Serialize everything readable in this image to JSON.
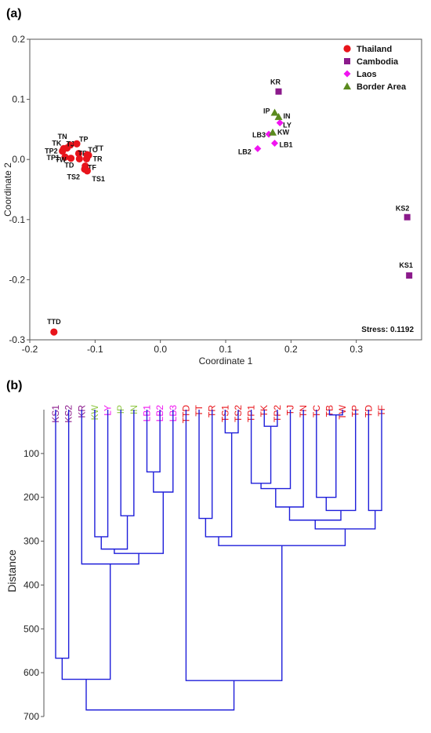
{
  "panel_a_label": "(a)",
  "panel_b_label": "(b)",
  "chart_data": [
    {
      "type": "scatter",
      "xlabel": "Coordinate 1",
      "ylabel": "Coordinate 2",
      "xlim": [
        -0.2,
        0.4
      ],
      "ylim": [
        -0.3,
        0.2
      ],
      "xticks": [
        -0.2,
        -0.1,
        0.0,
        0.1,
        0.2,
        0.3
      ],
      "xtick_labels": [
        "-0.2",
        "-0.1",
        "0.0",
        "0.1",
        "0.2",
        "0.3"
      ],
      "yticks": [
        -0.3,
        -0.2,
        -0.1,
        0.0,
        0.1,
        0.2
      ],
      "ytick_labels": [
        "-0.3",
        "-0.2",
        "-0.1",
        "0.0",
        "0.1",
        "0.2"
      ],
      "annotation": "Stress: 0.1192",
      "legend_position": "top-right",
      "series": [
        {
          "name": "Thailand",
          "marker": "circle",
          "color": "#e8141b",
          "points": [
            {
              "label": "TN",
              "x": -0.138,
              "y": 0.024
            },
            {
              "label": "TK",
              "x": -0.148,
              "y": 0.018
            },
            {
              "label": "TJ",
              "x": -0.143,
              "y": 0.019
            },
            {
              "label": "TP",
              "x": -0.128,
              "y": 0.026
            },
            {
              "label": "TP2",
              "x": -0.15,
              "y": 0.014
            },
            {
              "label": "TB",
              "x": -0.125,
              "y": 0.01
            },
            {
              "label": "TC",
              "x": -0.112,
              "y": 0.008
            },
            {
              "label": "TT",
              "x": -0.11,
              "y": 0.007
            },
            {
              "label": "TP1",
              "x": -0.146,
              "y": 0.004
            },
            {
              "label": "TW",
              "x": -0.137,
              "y": 0.002
            },
            {
              "label": "TR",
              "x": -0.113,
              "y": 0.001
            },
            {
              "label": "TD",
              "x": -0.124,
              "y": 0.001
            },
            {
              "label": "TF",
              "x": -0.115,
              "y": -0.011
            },
            {
              "label": "TS2",
              "x": -0.116,
              "y": -0.016
            },
            {
              "label": "TS1",
              "x": -0.112,
              "y": -0.019
            },
            {
              "label": "TTD",
              "x": -0.163,
              "y": -0.287
            }
          ]
        },
        {
          "name": "Cambodia",
          "marker": "square",
          "color": "#8b1a8b",
          "points": [
            {
              "label": "KR",
              "x": 0.181,
              "y": 0.113
            },
            {
              "label": "KS2",
              "x": 0.378,
              "y": -0.096
            },
            {
              "label": "KS1",
              "x": 0.381,
              "y": -0.193
            }
          ]
        },
        {
          "name": "Laos",
          "marker": "diamond",
          "color": "#f014f0",
          "points": [
            {
              "label": "LY",
              "x": 0.183,
              "y": 0.061
            },
            {
              "label": "LB3",
              "x": 0.166,
              "y": 0.042
            },
            {
              "label": "LB1",
              "x": 0.175,
              "y": 0.027
            },
            {
              "label": "LB2",
              "x": 0.149,
              "y": 0.018
            }
          ]
        },
        {
          "name": "Border Area",
          "marker": "triangle",
          "color": "#5a8a1e",
          "points": [
            {
              "label": "IP",
              "x": 0.175,
              "y": 0.078
            },
            {
              "label": "IN",
              "x": 0.181,
              "y": 0.071
            },
            {
              "label": "KW",
              "x": 0.172,
              "y": 0.045
            }
          ]
        }
      ]
    },
    {
      "type": "dendrogram",
      "ylabel": "Distance",
      "ylim": [
        0,
        700
      ],
      "yticks": [
        100,
        200,
        300,
        400,
        500,
        600,
        700
      ],
      "leaves": [
        {
          "label": "KS1",
          "color": "#8b1a8b"
        },
        {
          "label": "KS2",
          "color": "#8b1a8b"
        },
        {
          "label": "KR",
          "color": "#8b1a8b"
        },
        {
          "label": "KW",
          "color": "#8dc63f"
        },
        {
          "label": "LY",
          "color": "#f014f0"
        },
        {
          "label": "IP",
          "color": "#8dc63f"
        },
        {
          "label": "IN",
          "color": "#8dc63f"
        },
        {
          "label": "LB1",
          "color": "#f014f0"
        },
        {
          "label": "LB2",
          "color": "#f014f0"
        },
        {
          "label": "LB3",
          "color": "#f014f0"
        },
        {
          "label": "TTD",
          "color": "#e8141b"
        },
        {
          "label": "TT",
          "color": "#e8141b"
        },
        {
          "label": "TR",
          "color": "#e8141b"
        },
        {
          "label": "TS1",
          "color": "#e8141b"
        },
        {
          "label": "TS2",
          "color": "#e8141b"
        },
        {
          "label": "TP1",
          "color": "#e8141b"
        },
        {
          "label": "TK",
          "color": "#e8141b"
        },
        {
          "label": "TP2",
          "color": "#e8141b"
        },
        {
          "label": "TJ",
          "color": "#e8141b"
        },
        {
          "label": "TN",
          "color": "#e8141b"
        },
        {
          "label": "TC",
          "color": "#e8141b"
        },
        {
          "label": "TB",
          "color": "#e8141b"
        },
        {
          "label": "TW",
          "color": "#e8141b"
        },
        {
          "label": "TP",
          "color": "#e8141b"
        },
        {
          "label": "TD",
          "color": "#e8141b"
        },
        {
          "label": "TF",
          "color": "#e8141b"
        }
      ],
      "merges": [
        {
          "id": "N1",
          "a": "TB",
          "b": "TW",
          "h": 12
        },
        {
          "id": "N2",
          "a": "TK",
          "b": "TP2",
          "h": 38
        },
        {
          "id": "N3",
          "a": "TS1",
          "b": "TS2",
          "h": 53
        },
        {
          "id": "N4",
          "a": "LB1",
          "b": "LB2",
          "h": 142
        },
        {
          "id": "N5",
          "a": "TP1",
          "b": "N2",
          "h": 168
        },
        {
          "id": "N6",
          "a": "N5",
          "b": "TJ",
          "h": 180
        },
        {
          "id": "N7",
          "a": "N4",
          "b": "LB3",
          "h": 188
        },
        {
          "id": "N8",
          "a": "TC",
          "b": "N1",
          "h": 200
        },
        {
          "id": "N9",
          "a": "N6",
          "b": "TN",
          "h": 222
        },
        {
          "id": "N10",
          "a": "N8",
          "b": "TP",
          "h": 230
        },
        {
          "id": "N11",
          "a": "TD",
          "b": "TF",
          "h": 230
        },
        {
          "id": "N12",
          "a": "IP",
          "b": "IN",
          "h": 242
        },
        {
          "id": "N13",
          "a": "TT",
          "b": "TR",
          "h": 248
        },
        {
          "id": "N14",
          "a": "N9",
          "b": "N10",
          "h": 252
        },
        {
          "id": "N15",
          "a": "N14",
          "b": "N11",
          "h": 272
        },
        {
          "id": "N16",
          "a": "KW",
          "b": "LY",
          "h": 290
        },
        {
          "id": "N17",
          "a": "N13",
          "b": "N3",
          "h": 290
        },
        {
          "id": "N18",
          "a": "N17",
          "b": "N15",
          "h": 310
        },
        {
          "id": "N19",
          "a": "N16",
          "b": "N12",
          "h": 318
        },
        {
          "id": "N20",
          "a": "N19",
          "b": "N7",
          "h": 328
        },
        {
          "id": "N21",
          "a": "KR",
          "b": "N20",
          "h": 352
        },
        {
          "id": "N22",
          "a": "KS1",
          "b": "KS2",
          "h": 567
        },
        {
          "id": "N23",
          "a": "N22",
          "b": "N21",
          "h": 615
        },
        {
          "id": "N24",
          "a": "TTD",
          "b": "N18",
          "h": 618
        },
        {
          "id": "N25",
          "a": "N23",
          "b": "N24",
          "h": 685
        }
      ]
    }
  ]
}
